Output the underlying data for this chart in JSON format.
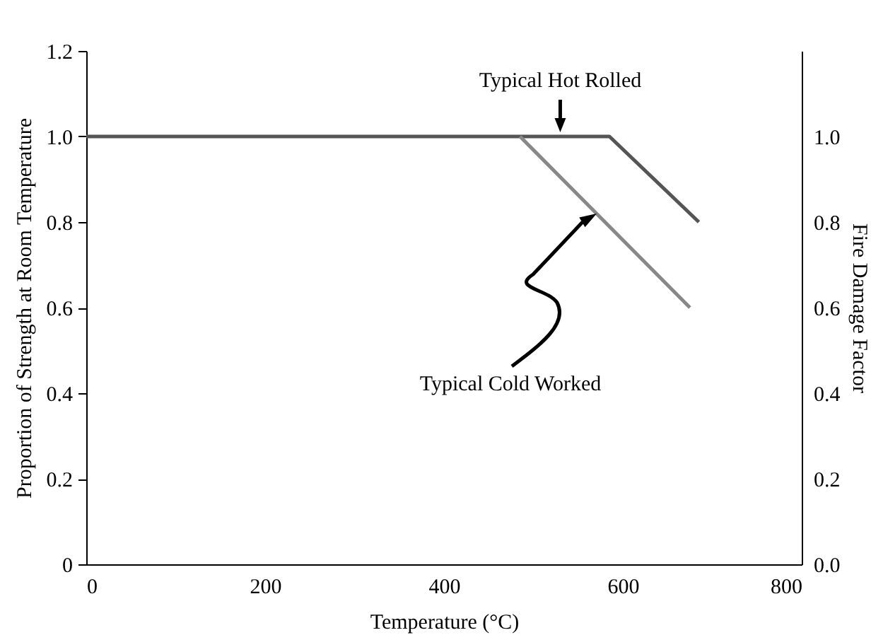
{
  "chart_data": {
    "type": "line",
    "xlabel": "Temperature (°C)",
    "ylabel": "Proportion of Strength at Room Temperature",
    "y2label": "Fire Damage Factor",
    "xlim": [
      0,
      800
    ],
    "xticks": [
      0,
      200,
      400,
      600,
      800
    ],
    "ylim": [
      0,
      1.2
    ],
    "yticks": [
      0,
      0.2,
      0.4,
      0.6,
      0.8,
      {
        "value": 1,
        "label": "1.0"
      },
      1.2
    ],
    "y2lim": [
      0,
      1.2
    ],
    "y2ticks": [
      {
        "value": 0,
        "label": "0.0"
      },
      0.2,
      0.4,
      0.6,
      0.8,
      {
        "value": 1,
        "label": "1.0"
      }
    ],
    "grid": false,
    "marker": "none",
    "line_style": "solid",
    "series": [
      {
        "color": "#555555",
        "x": [
          0,
          585,
          685
        ],
        "values": [
          1,
          1,
          0.8
        ]
      },
      {
        "color": "#888888",
        "x": [
          485,
          675
        ],
        "values": [
          1,
          0.6
        ]
      }
    ],
    "annotations": [
      {
        "text": "Typical Hot Rolled",
        "x": 530,
        "y": 1
      },
      "Typical Cold Worked"
    ]
  }
}
